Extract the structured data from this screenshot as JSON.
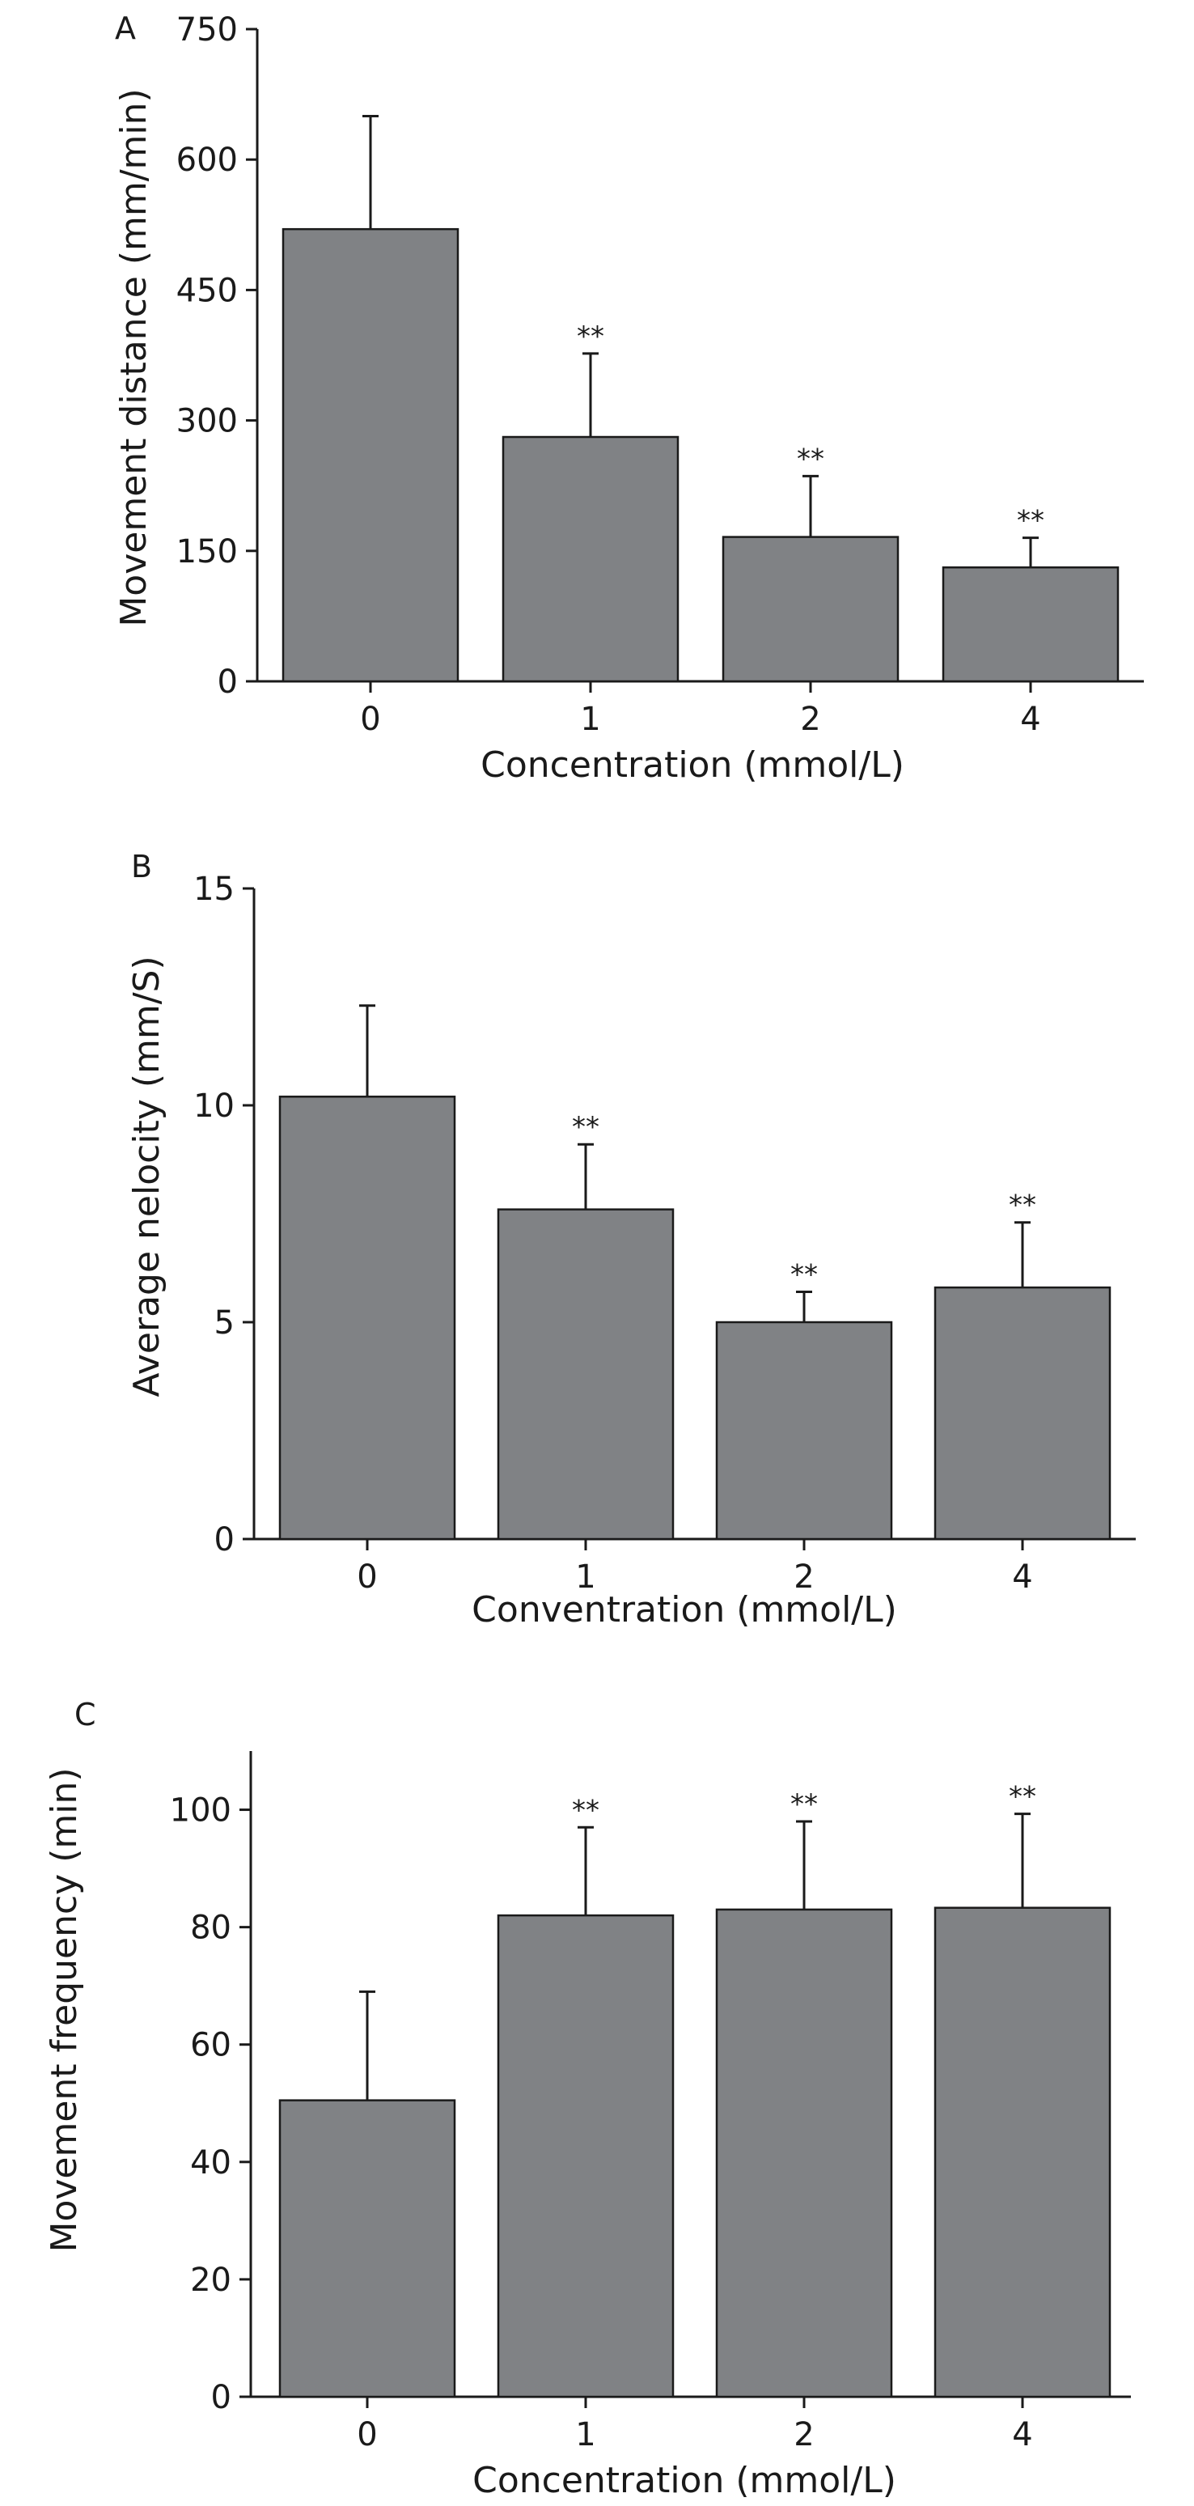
{
  "chart_data": [
    {
      "panel": "A",
      "type": "bar",
      "categories": [
        "0",
        "1",
        "2",
        "4"
      ],
      "values": [
        520,
        281,
        166,
        131
      ],
      "errors": [
        130,
        96,
        70,
        34
      ],
      "significance": [
        "",
        "**",
        "**",
        "**"
      ],
      "xlabel": "Concentration (mmol/L)",
      "ylabel": "Movement distance (mm/min)",
      "ylim": [
        0,
        750
      ],
      "yticks": [
        0,
        150,
        300,
        450,
        600,
        750
      ],
      "bar_color": "#808285",
      "grid": false
    },
    {
      "panel": "B",
      "type": "bar",
      "categories": [
        "0",
        "1",
        "2",
        "4"
      ],
      "values": [
        10.2,
        7.6,
        5.0,
        5.8
      ],
      "errors": [
        2.1,
        1.5,
        0.7,
        1.5
      ],
      "significance": [
        "",
        "**",
        "**",
        "**"
      ],
      "xlabel": "Conventration (mmol/L)",
      "ylabel": "Average nelocity (mm/S)",
      "ylim": [
        0,
        15
      ],
      "yticks": [
        0,
        5,
        10,
        15
      ],
      "bar_color": "#808285",
      "grid": false
    },
    {
      "panel": "C",
      "type": "bar",
      "categories": [
        "0",
        "1",
        "2",
        "4"
      ],
      "values": [
        50.5,
        82,
        83,
        83.3
      ],
      "errors": [
        18.5,
        15,
        15,
        16
      ],
      "significance": [
        "",
        "**",
        "**",
        "**"
      ],
      "xlabel": "Concentration (mmol/L)",
      "ylabel": "Movement frequency (min)",
      "ylim": [
        0,
        110
      ],
      "yticks": [
        0,
        20,
        40,
        60,
        80,
        100
      ],
      "bar_color": "#808285",
      "grid": false
    }
  ]
}
